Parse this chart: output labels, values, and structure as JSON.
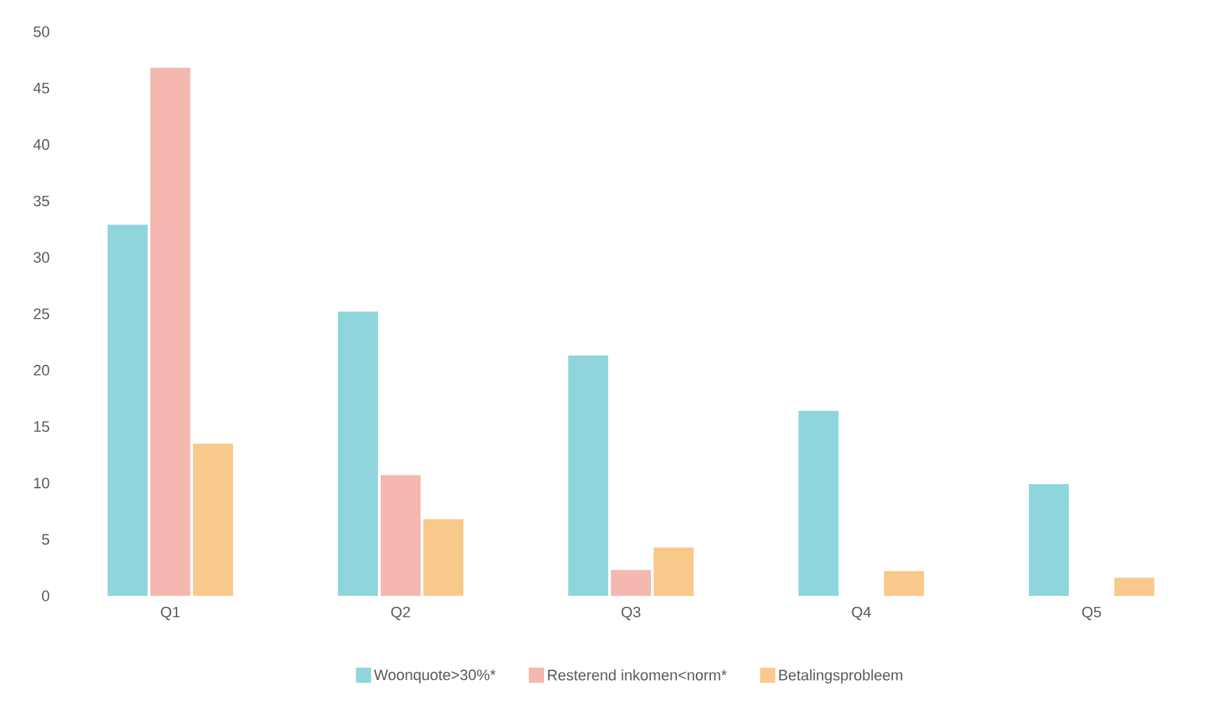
{
  "chart_data": {
    "type": "bar",
    "categories": [
      "Q1",
      "Q2",
      "Q3",
      "Q4",
      "Q5"
    ],
    "series": [
      {
        "name": "Woonquote>30%*",
        "color": "#8fd6dc",
        "values": [
          32.9,
          25.2,
          21.3,
          16.4,
          9.9
        ]
      },
      {
        "name": "Resterend inkomen<norm*",
        "color": "#f4b8b0",
        "values": [
          46.8,
          10.7,
          2.3,
          null,
          0
        ]
      },
      {
        "name": "Betalingsprobleem",
        "color": "#f9c98c",
        "values": [
          13.5,
          6.8,
          4.3,
          2.2,
          1.6
        ]
      }
    ],
    "ylim": [
      0,
      50
    ],
    "yticks": [
      0,
      5,
      10,
      15,
      20,
      25,
      30,
      35,
      40,
      45,
      50
    ],
    "legend": "bottom"
  }
}
